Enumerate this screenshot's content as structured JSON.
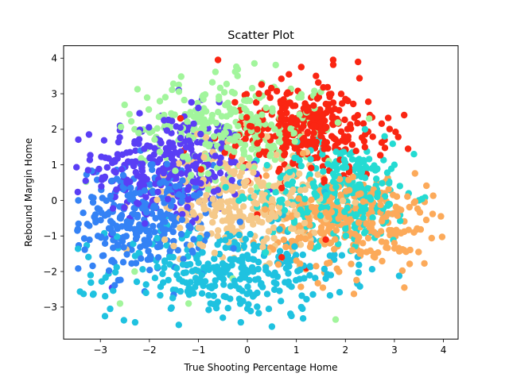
{
  "chart_data": {
    "type": "scatter",
    "title": "Scatter Plot",
    "xlabel": "True Shooting Percentage Home",
    "ylabel": "Rebound Margin Home",
    "xlim": [
      -3.75,
      4.3
    ],
    "ylim": [
      -3.9,
      4.35
    ],
    "xticks": [
      -3,
      -2,
      -1,
      0,
      1,
      2,
      3,
      4
    ],
    "yticks": [
      -3,
      -2,
      -1,
      0,
      1,
      2,
      3,
      4
    ],
    "grid": false,
    "legend": "none",
    "colormap": "rainbow",
    "series": [
      {
        "color": "#5a3ef5",
        "center": [
          -1.6,
          0.9
        ],
        "spread": [
          0.75,
          0.8
        ],
        "points": [
          [
            -3.25,
            0.85
          ],
          [
            -3.3,
            0.55
          ],
          [
            -2.9,
            1.2
          ],
          [
            -2.2,
            2.45
          ],
          [
            -2.6,
            2.1
          ],
          [
            -1.4,
            3.1
          ],
          [
            -1.0,
            2.6
          ],
          [
            -2.3,
            1.6
          ],
          [
            -1.9,
            1.1
          ],
          [
            -1.2,
            0.7
          ],
          [
            -0.7,
            1.5
          ],
          [
            -2.7,
            0.1
          ],
          [
            -1.6,
            0.4
          ],
          [
            -2.1,
            -0.3
          ],
          [
            -0.3,
            0.4
          ]
        ]
      },
      {
        "color": "#3482f5",
        "center": [
          -2.1,
          -0.5
        ],
        "spread": [
          0.65,
          0.75
        ],
        "points": [
          [
            -3.45,
            0.0
          ],
          [
            -3.35,
            -0.35
          ],
          [
            -3.1,
            -0.4
          ],
          [
            -2.9,
            -1.05
          ],
          [
            -2.6,
            -0.5
          ],
          [
            -2.3,
            0.2
          ],
          [
            -1.8,
            -1.3
          ],
          [
            -1.5,
            -0.7
          ],
          [
            -2.0,
            -1.0
          ],
          [
            -1.2,
            0.1
          ]
        ]
      },
      {
        "color": "#1fc2e0",
        "center": [
          -0.4,
          -2.0
        ],
        "spread": [
          1.2,
          0.65
        ],
        "points": [
          [
            -3.2,
            -2.1
          ],
          [
            -3.15,
            -2.65
          ],
          [
            -2.8,
            -3.05
          ],
          [
            -1.4,
            -3.5
          ],
          [
            -0.5,
            -3.3
          ],
          [
            0.5,
            -3.55
          ],
          [
            1.1,
            -3.0
          ],
          [
            0.2,
            -2.6
          ],
          [
            -0.9,
            -2.4
          ],
          [
            -1.7,
            -1.9
          ],
          [
            0.8,
            -1.7
          ],
          [
            1.6,
            -2.2
          ],
          [
            -2.2,
            -1.5
          ]
        ]
      },
      {
        "color": "#24dbd2",
        "center": [
          1.9,
          0.2
        ],
        "spread": [
          0.75,
          0.7
        ],
        "points": [
          [
            3.5,
            0.0
          ],
          [
            3.0,
            1.0
          ],
          [
            2.8,
            1.8
          ],
          [
            3.4,
            1.3
          ],
          [
            2.4,
            2.0
          ],
          [
            1.4,
            0.9
          ],
          [
            2.2,
            -0.2
          ],
          [
            2.0,
            -0.8
          ],
          [
            1.0,
            0.3
          ]
        ]
      },
      {
        "color": "#a2f59c",
        "center": [
          -0.4,
          2.0
        ],
        "spread": [
          0.9,
          0.7
        ],
        "points": [
          [
            -1.4,
            3.25
          ],
          [
            -0.9,
            2.95
          ],
          [
            -0.2,
            3.5
          ],
          [
            0.3,
            3.3
          ],
          [
            0.6,
            3.1
          ],
          [
            -1.7,
            2.4
          ],
          [
            -2.3,
            2.0
          ],
          [
            -0.5,
            1.5
          ],
          [
            1.1,
            2.9
          ],
          [
            1.5,
            3.05
          ],
          [
            1.8,
            -3.35
          ],
          [
            -1.2,
            -2.9
          ],
          [
            -0.3,
            -2.2
          ],
          [
            -2.6,
            -2.9
          ],
          [
            -2.3,
            -2.0
          ],
          [
            -0.8,
            0.3
          ]
        ]
      },
      {
        "color": "#f5c98a",
        "center": [
          -0.1,
          0.0
        ],
        "spread": [
          0.8,
          0.75
        ],
        "points": [
          [
            -0.8,
            -0.3
          ],
          [
            0.2,
            0.6
          ],
          [
            -0.3,
            -0.9
          ],
          [
            0.5,
            -0.2
          ],
          [
            -1.1,
            0.5
          ]
        ]
      },
      {
        "color": "#fcaa5a",
        "center": [
          2.1,
          -0.6
        ],
        "spread": [
          0.85,
          0.7
        ],
        "points": [
          [
            3.95,
            -0.45
          ],
          [
            3.65,
            -0.55
          ],
          [
            3.4,
            -0.9
          ],
          [
            3.0,
            -1.2
          ],
          [
            3.2,
            -1.4
          ],
          [
            2.6,
            -1.6
          ],
          [
            2.3,
            -1.5
          ],
          [
            1.7,
            -0.9
          ],
          [
            2.8,
            0.2
          ],
          [
            1.4,
            -0.3
          ]
        ]
      },
      {
        "color": "#fa2512",
        "center": [
          1.2,
          2.0
        ],
        "spread": [
          0.8,
          0.65
        ],
        "points": [
          [
            -0.6,
            3.95
          ],
          [
            1.75,
            3.95
          ],
          [
            1.1,
            3.75
          ],
          [
            1.4,
            3.5
          ],
          [
            2.0,
            2.85
          ],
          [
            2.5,
            2.4
          ],
          [
            3.2,
            2.4
          ],
          [
            2.8,
            1.7
          ],
          [
            0.8,
            2.7
          ],
          [
            0.2,
            2.0
          ],
          [
            -0.2,
            1.6
          ],
          [
            -1.3,
            1.4
          ],
          [
            0.7,
            -1.6
          ],
          [
            1.2,
            -1.9
          ],
          [
            0.2,
            -0.4
          ],
          [
            1.6,
            -1.1
          ]
        ]
      }
    ]
  }
}
